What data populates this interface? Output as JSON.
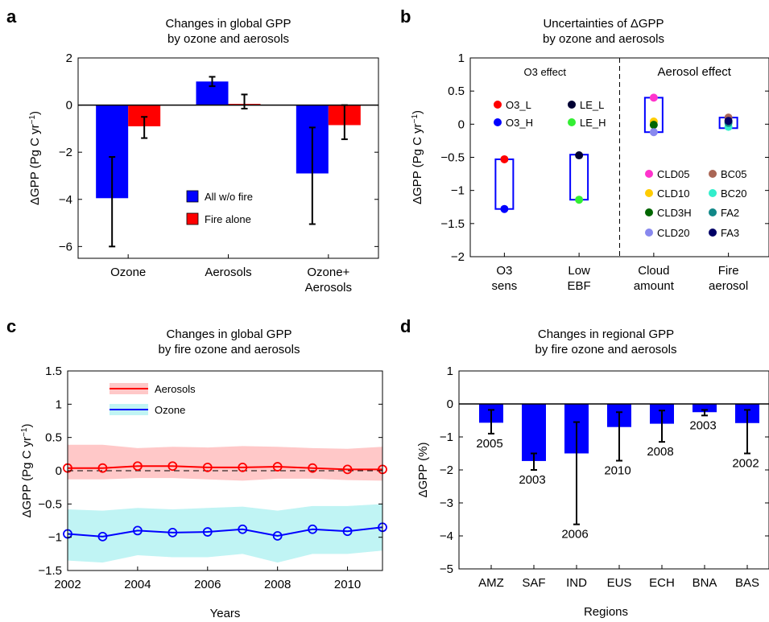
{
  "chart_data": [
    {
      "panel": "a",
      "type": "bar",
      "title": [
        "Changes in global GPP",
        "by ozone and aerosols"
      ],
      "ylabel": "ΔGPP (Pg C yr",
      "ylabel_sup": "−1",
      "ylabel_end": ")",
      "ylim": [
        -6.5,
        2
      ],
      "yticks": [
        "2",
        "0",
        "−2",
        "−4",
        "−6"
      ],
      "ytick_values": [
        2,
        0,
        -2,
        -4,
        -6
      ],
      "categories": [
        [
          "Ozone"
        ],
        [
          "Aerosols"
        ],
        [
          "Ozone+",
          "Aerosols"
        ]
      ],
      "series": [
        {
          "name": "All w/o fire",
          "color": "#0000ff",
          "values": [
            -3.95,
            1.0,
            -2.9
          ],
          "err_low": [
            -6.0,
            0.8,
            -5.05
          ],
          "err_high": [
            -2.2,
            1.2,
            -0.95
          ]
        },
        {
          "name": "Fire alone",
          "color": "#ff0000",
          "values": [
            -0.9,
            0.05,
            -0.85
          ],
          "err_low": [
            -1.4,
            -0.15,
            -1.45
          ],
          "err_high": [
            -0.5,
            0.45,
            0.0
          ]
        }
      ],
      "legend_position": "lower-middle"
    },
    {
      "panel": "b",
      "type": "scatter",
      "title": [
        "Uncertainties of  ΔGPP",
        "by ozone and aerosols"
      ],
      "ylabel": "ΔGPP (Pg C yr",
      "ylabel_sup": "−1",
      "ylabel_end": ")",
      "ylim": [
        -2,
        1
      ],
      "yticks": [
        "1",
        "0.5",
        "0",
        "−0.5",
        "−1",
        "−1.5",
        "−2"
      ],
      "ytick_values": [
        1,
        0.5,
        0,
        -0.5,
        -1,
        -1.5,
        -2
      ],
      "categories": [
        [
          "O3",
          "sens"
        ],
        [
          "Low",
          "EBF"
        ],
        [
          "Cloud",
          "amount"
        ],
        [
          "Fire",
          "aerosol"
        ]
      ],
      "section_labels": [
        "O3 effect",
        "Aerosol effect"
      ],
      "ranges": [
        [
          -1.28,
          -0.53
        ],
        [
          -1.14,
          -0.46
        ],
        [
          -0.12,
          0.4
        ],
        [
          -0.06,
          0.1
        ]
      ],
      "series": [
        {
          "name": "O3_L",
          "color": "#ff0000",
          "category": 0,
          "value": -0.53
        },
        {
          "name": "O3_H",
          "color": "#0000ff",
          "category": 0,
          "value": -1.28
        },
        {
          "name": "LE_L",
          "color": "#000033",
          "category": 1,
          "value": -0.47
        },
        {
          "name": "LE_H",
          "color": "#33ee33",
          "category": 1,
          "value": -1.14
        },
        {
          "name": "CLD05",
          "color": "#ff33cc",
          "category": 2,
          "value": 0.4
        },
        {
          "name": "CLD10",
          "color": "#ffcc00",
          "category": 2,
          "value": 0.04
        },
        {
          "name": "CLD3H",
          "color": "#006600",
          "category": 2,
          "value": -0.01
        },
        {
          "name": "CLD20",
          "color": "#8888ee",
          "category": 2,
          "value": -0.12
        },
        {
          "name": "BC05",
          "color": "#aa6655",
          "category": 3,
          "value": 0.1
        },
        {
          "name": "BC20",
          "color": "#33eecc",
          "category": 3,
          "value": -0.04
        },
        {
          "name": "FA2",
          "color": "#118888",
          "category": 3,
          "value": 0.02
        },
        {
          "name": "FA3",
          "color": "#000066",
          "category": 3,
          "value": 0.05
        }
      ]
    },
    {
      "panel": "c",
      "type": "line",
      "title": [
        "Changes in global GPP",
        "by fire ozone and aerosols"
      ],
      "ylabel": "ΔGPP (Pg C yr",
      "ylabel_sup": "−1",
      "ylabel_end": ")",
      "xlabel": "Years",
      "xlim": [
        2002,
        2011
      ],
      "ylim": [
        -1.5,
        1.5
      ],
      "xticks": [
        2002,
        2004,
        2006,
        2008,
        2010
      ],
      "yticks": [
        "1.5",
        "1",
        "0.5",
        "0",
        "−0.5",
        "−1",
        "−1.5"
      ],
      "ytick_values": [
        1.5,
        1,
        0.5,
        0,
        -0.5,
        -1,
        -1.5
      ],
      "x": [
        2002,
        2003,
        2004,
        2005,
        2006,
        2007,
        2008,
        2009,
        2010,
        2011
      ],
      "series": [
        {
          "name": "Aerosols",
          "color": "#ff0000",
          "band_color": "#ffc8c8",
          "values": [
            0.04,
            0.04,
            0.07,
            0.07,
            0.05,
            0.05,
            0.06,
            0.04,
            0.02,
            0.02
          ],
          "band_low": [
            -0.13,
            -0.13,
            -0.11,
            -0.11,
            -0.13,
            -0.15,
            -0.12,
            -0.12,
            -0.14,
            -0.15
          ],
          "band_high": [
            0.39,
            0.39,
            0.34,
            0.36,
            0.35,
            0.37,
            0.36,
            0.34,
            0.33,
            0.36
          ]
        },
        {
          "name": "Ozone",
          "color": "#0000ff",
          "band_color": "#c0f4f4",
          "values": [
            -0.95,
            -0.99,
            -0.9,
            -0.93,
            -0.92,
            -0.88,
            -0.98,
            -0.88,
            -0.91,
            -0.85
          ],
          "band_low": [
            -1.35,
            -1.38,
            -1.27,
            -1.3,
            -1.3,
            -1.25,
            -1.38,
            -1.25,
            -1.25,
            -1.2
          ],
          "band_high": [
            -0.58,
            -0.6,
            -0.56,
            -0.58,
            -0.56,
            -0.54,
            -0.6,
            -0.53,
            -0.53,
            -0.5
          ]
        }
      ],
      "zero_line": true,
      "legend_position": "top-left"
    },
    {
      "panel": "d",
      "type": "bar",
      "title": [
        "Changes in regional GPP",
        "by fire ozone and aerosols"
      ],
      "ylabel": "ΔGPP (%)",
      "xlabel": "Regions",
      "ylim": [
        -5,
        1
      ],
      "yticks": [
        "1",
        "0",
        "−1",
        "−2",
        "−3",
        "−4",
        "−5"
      ],
      "ytick_values": [
        1,
        0,
        -1,
        -2,
        -3,
        -4,
        -5
      ],
      "categories": [
        "AMZ",
        "SAF",
        "IND",
        "EUS",
        "ECH",
        "BNA",
        "BAS"
      ],
      "values": [
        -0.57,
        -1.73,
        -1.5,
        -0.7,
        -0.6,
        -0.25,
        -0.58
      ],
      "err_low": [
        -0.9,
        -2.0,
        -3.65,
        -1.72,
        -1.15,
        -0.35,
        -1.5
      ],
      "err_high": [
        -0.18,
        -1.5,
        -0.55,
        -0.25,
        -0.2,
        -0.18,
        -0.18
      ],
      "annotations": [
        "2005",
        "2003",
        "2006",
        "2010",
        "2008",
        "2003",
        "2002"
      ],
      "color": "#0000ff"
    }
  ]
}
